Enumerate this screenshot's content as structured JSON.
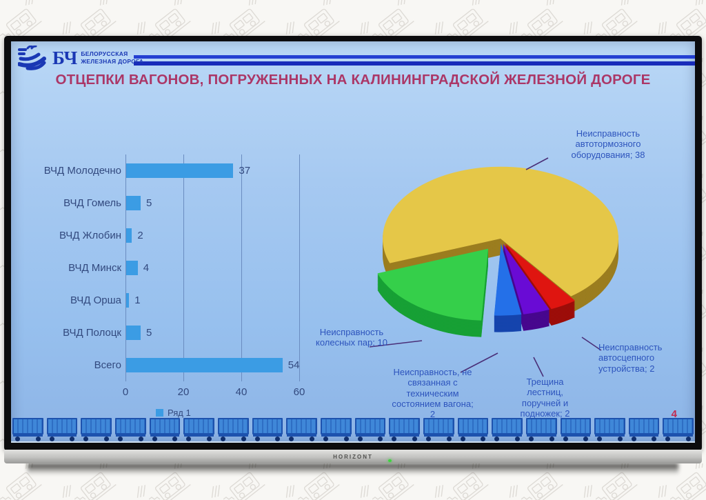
{
  "monitor": {
    "brand": "HORIZONT"
  },
  "logo": {
    "abbr": "БЧ",
    "name_line1": "БЕЛОРУССКАЯ",
    "name_line2": "ЖЕЛЕЗНАЯ ДОРОГА"
  },
  "slide": {
    "title": "ОТЦЕПКИ ВАГОНОВ, ПОГРУЖЕННЫХ НА  КАЛИНИНГРАДСКОЙ ЖЕЛЕЗНОЙ ДОРОГЕ",
    "page_number": "4"
  },
  "chart_data": [
    {
      "type": "bar",
      "orientation": "horizontal",
      "title": "",
      "categories": [
        "ВЧД Молодечно",
        "ВЧД Гомель",
        "ВЧД Жлобин",
        "ВЧД Минск",
        "ВЧД Орша",
        "ВЧД Полоцк",
        "Всего"
      ],
      "values": [
        37,
        5,
        2,
        4,
        1,
        5,
        54
      ],
      "xlim": [
        0,
        60
      ],
      "xticks": [
        0,
        20,
        40,
        60
      ],
      "grid": true,
      "legend": [
        "Ряд 1"
      ],
      "legend_position": "bottom",
      "bar_color": "#3b9ce4"
    },
    {
      "type": "pie",
      "style": "3d-exploded",
      "start_angle_deg": 250,
      "slices": [
        {
          "label": "Неисправность автотормозного оборудования",
          "value": 38,
          "color": "#e5c748",
          "side_color": "#9b7d1f",
          "explode": 0
        },
        {
          "label": "Неисправность автосцепного устройства",
          "value": 2,
          "color": "#df1510",
          "side_color": "#9c0d09",
          "explode": 12
        },
        {
          "label": "Трещина лестниц, поручней и подножек",
          "value": 2,
          "color": "#690bd5",
          "side_color": "#47078e",
          "explode": 12
        },
        {
          "label": "Неисправность, не связанная с техническим состоянием вагона",
          "value": 2,
          "color": "#2470e8",
          "side_color": "#1544ad",
          "explode": 12
        },
        {
          "label": "Неисправность колесных пар",
          "value": 10,
          "color": "#35cf4a",
          "side_color": "#17a035",
          "explode": 30
        }
      ],
      "callouts": [
        {
          "text": "Неисправность\nавтотормозного\nоборудования; 38"
        },
        {
          "text": "Неисправность\nколесных пар; 10"
        },
        {
          "text": "Неисправность, не\nсвязанная с\nтехническим\nсостоянием вагона;\n2"
        },
        {
          "text": "Трещина\nлестниц,\nпоручней и\nподножек; 2"
        },
        {
          "text": "Неисправность\nавтосцепного\nустройства; 2"
        }
      ],
      "leader_color": "#4a2f78"
    }
  ],
  "decor": {
    "wagon_count": 20
  }
}
